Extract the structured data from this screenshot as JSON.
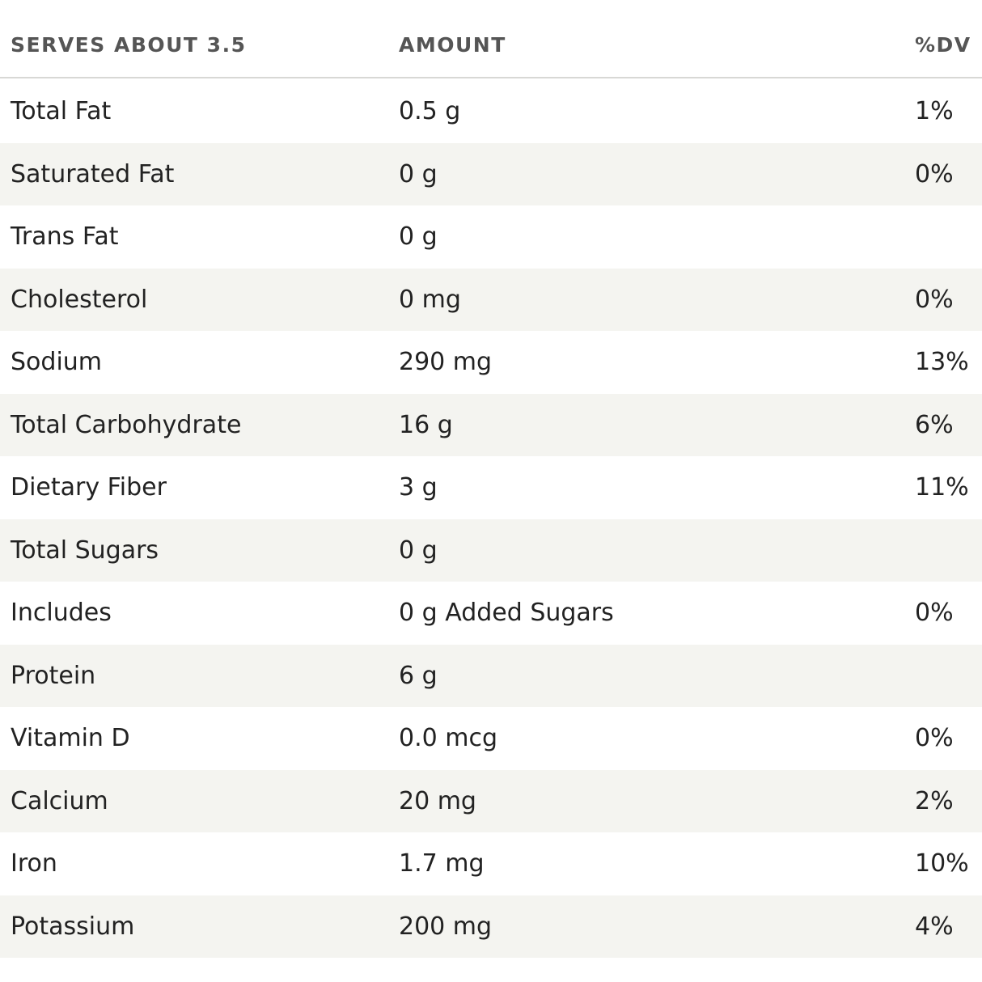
{
  "header": {
    "serving": "SERVES ABOUT 3.5",
    "amount": "AMOUNT",
    "dv": "%DV"
  },
  "rows": [
    {
      "name": "Total Fat",
      "amount": "0.5 g",
      "dv": "1%"
    },
    {
      "name": "Saturated Fat",
      "amount": "0 g",
      "dv": "0%"
    },
    {
      "name": "Trans Fat",
      "amount": "0 g",
      "dv": ""
    },
    {
      "name": "Cholesterol",
      "amount": "0 mg",
      "dv": "0%"
    },
    {
      "name": "Sodium",
      "amount": "290 mg",
      "dv": "13%"
    },
    {
      "name": "Total Carbohydrate",
      "amount": "16 g",
      "dv": "6%"
    },
    {
      "name": "Dietary Fiber",
      "amount": "3 g",
      "dv": "11%"
    },
    {
      "name": "Total Sugars",
      "amount": "0 g",
      "dv": ""
    },
    {
      "name": "Includes",
      "amount": "0 g Added Sugars",
      "dv": "0%"
    },
    {
      "name": "Protein",
      "amount": "6 g",
      "dv": ""
    },
    {
      "name": "Vitamin D",
      "amount": "0.0 mcg",
      "dv": "0%"
    },
    {
      "name": "Calcium",
      "amount": "20 mg",
      "dv": "2%"
    },
    {
      "name": "Iron",
      "amount": "1.7 mg",
      "dv": "10%"
    },
    {
      "name": "Potassium",
      "amount": "200 mg",
      "dv": "4%"
    }
  ],
  "colors": {
    "header_text": "#555555",
    "body_text": "#222222",
    "stripe": "#f4f4f0",
    "divider": "#d8d8d5"
  }
}
